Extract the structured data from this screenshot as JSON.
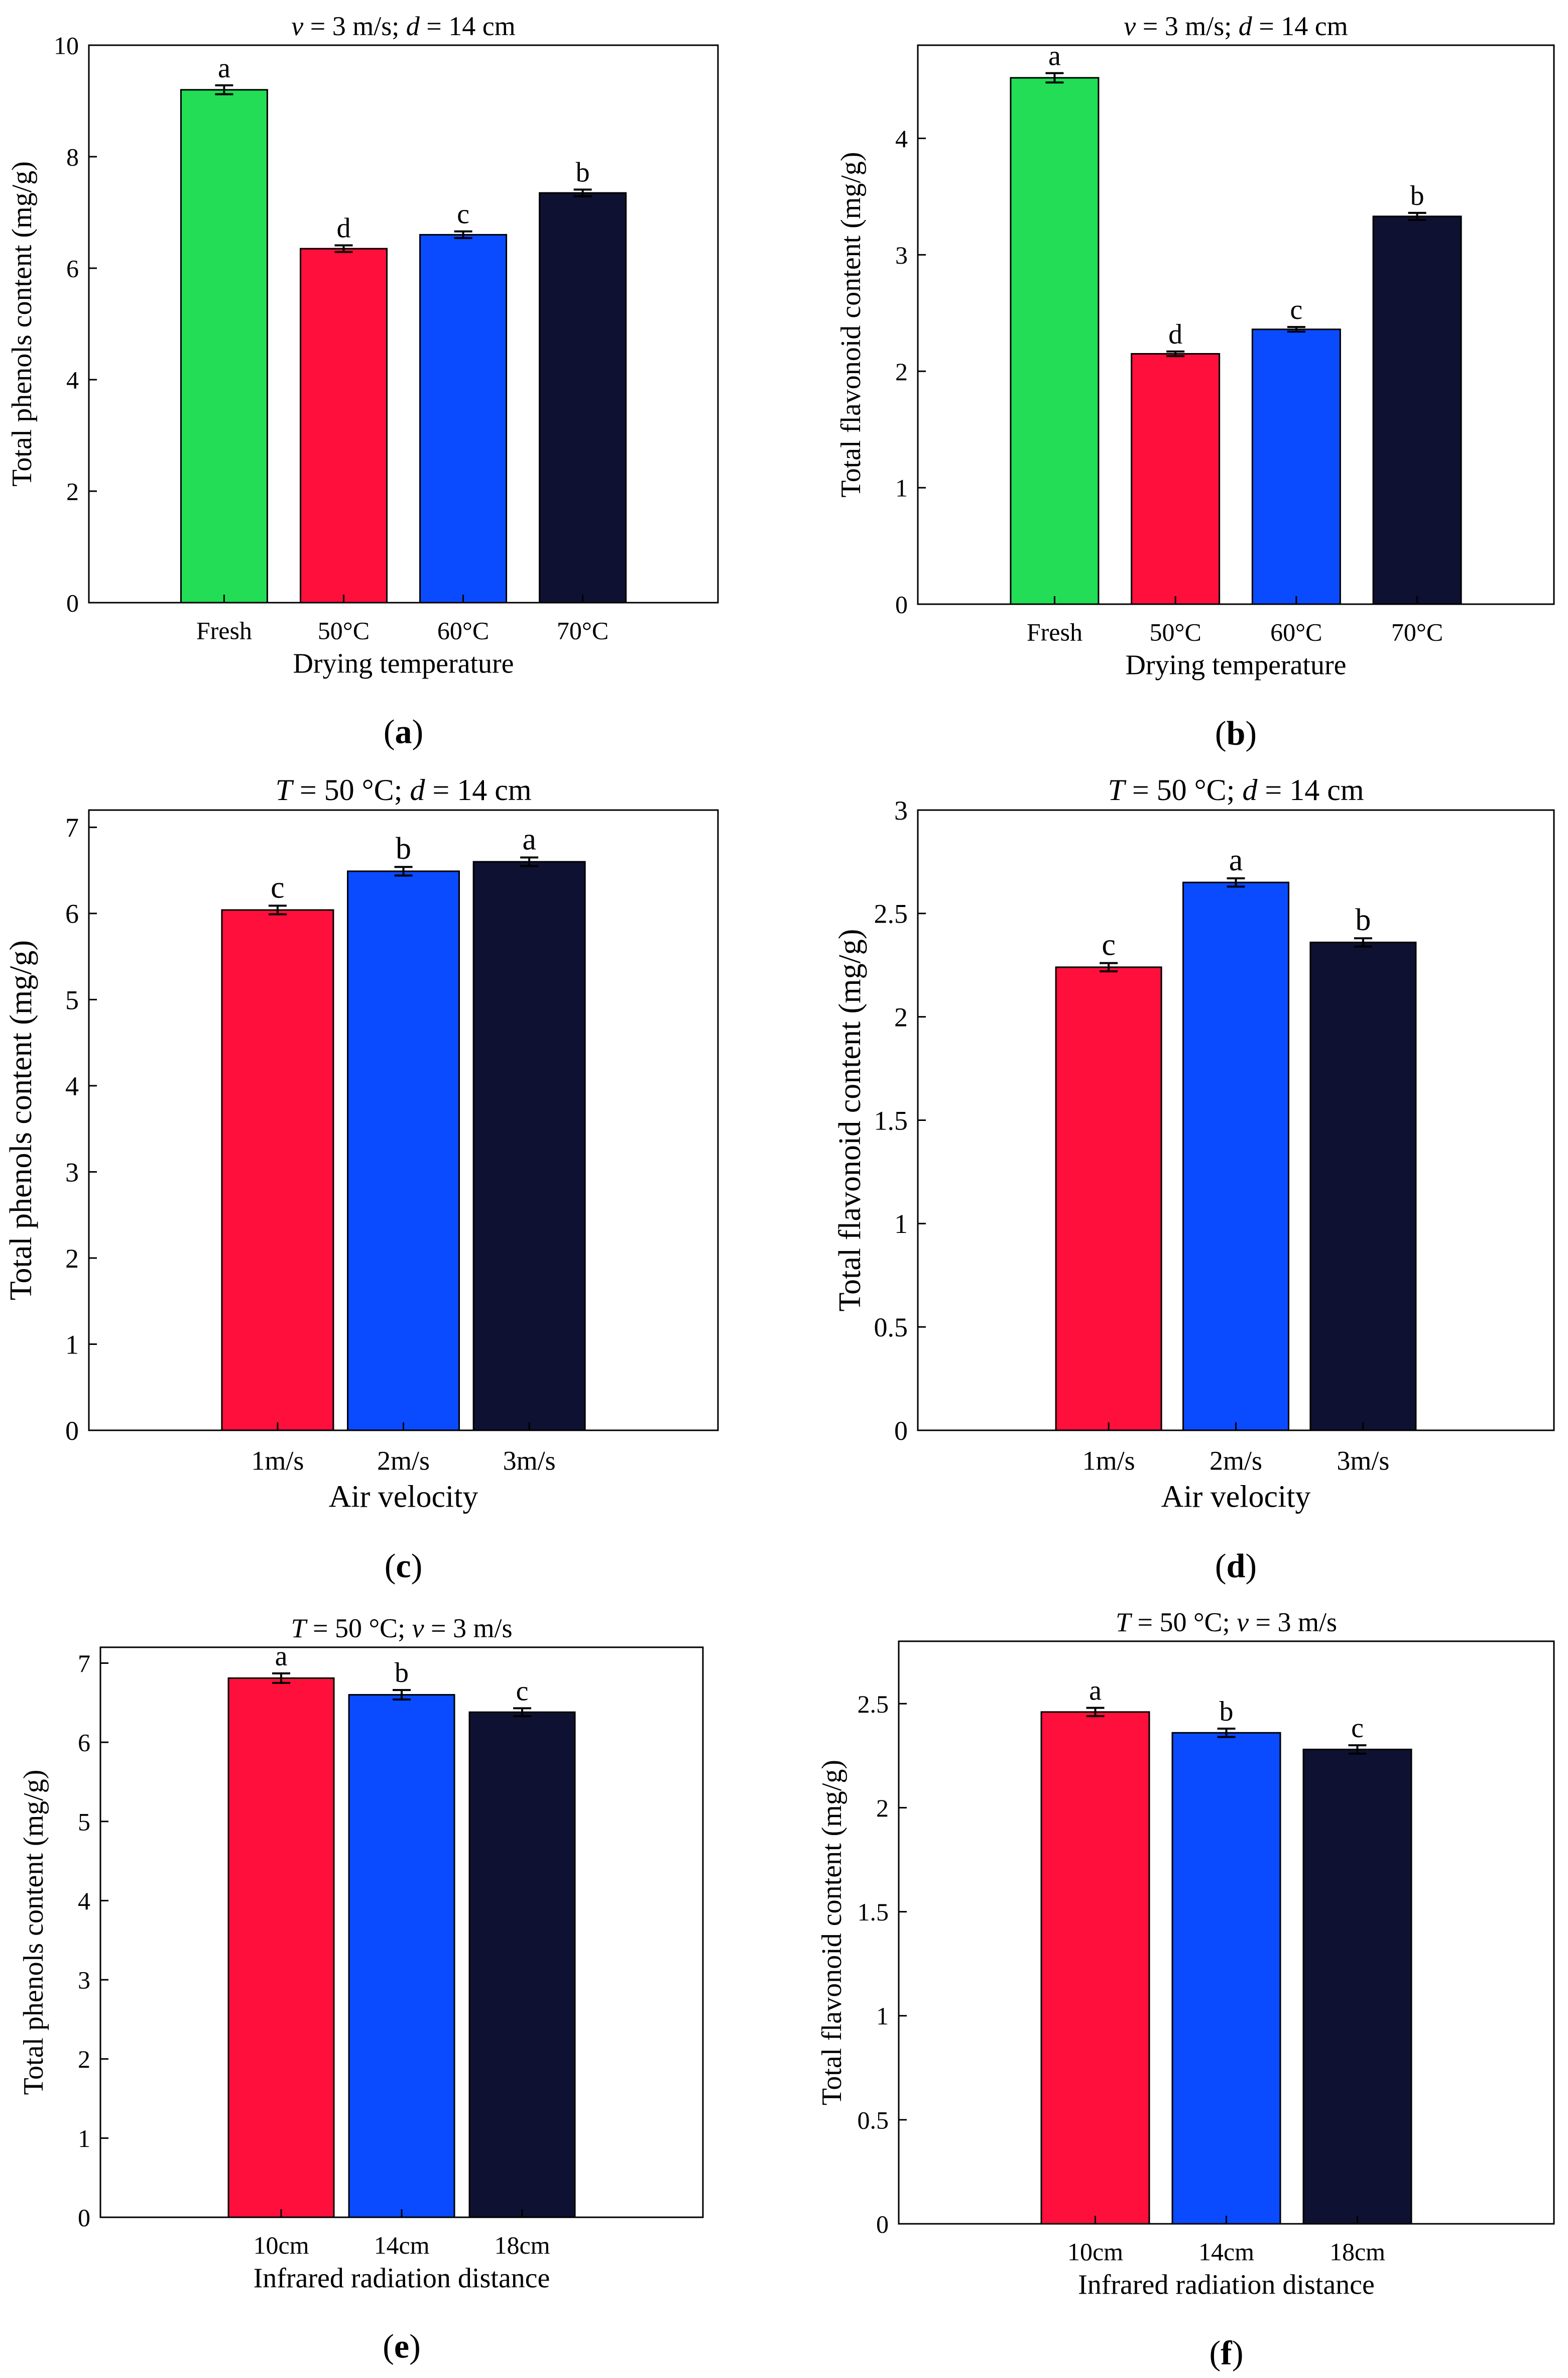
{
  "colors": {
    "fresh": "#22dd55",
    "c50": "#ff0f3c",
    "c60": "#0a4bff",
    "c70": "#0f1132"
  },
  "chart_data": [
    {
      "panel": "(a)",
      "type": "bar",
      "title_pre": "v",
      "title_mid1": " = 3 m/s; ",
      "title_var2": "d",
      "title_mid2": " = 14 cm",
      "xlabel": "Drying temperature",
      "ylabel": "Total phenols content (mg/g)",
      "ylim": [
        0,
        10
      ],
      "yticks": [
        0,
        2,
        4,
        6,
        8,
        10
      ],
      "ytick_labels": [
        "0",
        "2",
        "4",
        "6",
        "8",
        "10"
      ],
      "categories": [
        "Fresh",
        "50°C",
        "60°C",
        "70°C"
      ],
      "values": [
        9.2,
        6.35,
        6.6,
        7.35
      ],
      "errors": [
        0.08,
        0.06,
        0.06,
        0.06
      ],
      "letters": [
        "a",
        "d",
        "c",
        "b"
      ],
      "bar_colors": [
        "#22dd55",
        "#ff0f3c",
        "#0a4bff",
        "#0f1132"
      ]
    },
    {
      "panel": "(b)",
      "type": "bar",
      "title_pre": "v",
      "title_mid1": " = 3 m/s; ",
      "title_var2": "d",
      "title_mid2": " = 14 cm",
      "xlabel": "Drying temperature",
      "ylabel": "Total flavonoid content (mg/g)",
      "ylim": [
        0,
        4.8
      ],
      "yticks": [
        0,
        1,
        2,
        3,
        4
      ],
      "ytick_labels": [
        "0",
        "1",
        "2",
        "3",
        "4"
      ],
      "categories": [
        "Fresh",
        "50°C",
        "60°C",
        "70°C"
      ],
      "values": [
        4.52,
        2.15,
        2.36,
        3.33
      ],
      "errors": [
        0.04,
        0.02,
        0.02,
        0.03
      ],
      "letters": [
        "a",
        "d",
        "c",
        "b"
      ],
      "bar_colors": [
        "#22dd55",
        "#ff0f3c",
        "#0a4bff",
        "#0f1132"
      ]
    },
    {
      "panel": "(c)",
      "type": "bar",
      "title_pre": "T",
      "title_mid1": " = 50 °C; ",
      "title_var2": "d",
      "title_mid2": " = 14 cm",
      "xlabel": "Air velocity",
      "ylabel": "Total phenols content (mg/g)",
      "ylim": [
        0,
        7.2
      ],
      "yticks": [
        0,
        1,
        2,
        3,
        4,
        5,
        6,
        7
      ],
      "ytick_labels": [
        "0",
        "1",
        "2",
        "3",
        "4",
        "5",
        "6",
        "7"
      ],
      "categories": [
        "1m/s",
        "2m/s",
        "3m/s"
      ],
      "values": [
        6.04,
        6.49,
        6.6
      ],
      "errors": [
        0.05,
        0.05,
        0.05
      ],
      "letters": [
        "c",
        "b",
        "a"
      ],
      "bar_colors": [
        "#ff0f3c",
        "#0a4bff",
        "#0f1132"
      ]
    },
    {
      "panel": "(d)",
      "type": "bar",
      "title_pre": "T",
      "title_mid1": " = 50 °C; ",
      "title_var2": "d",
      "title_mid2": " = 14 cm",
      "xlabel": "Air velocity",
      "ylabel": "Total flavonoid content (mg/g)",
      "ylim": [
        0,
        3
      ],
      "yticks": [
        0,
        0.5,
        1,
        1.5,
        2,
        2.5,
        3
      ],
      "ytick_labels": [
        "0",
        "0.5",
        "1",
        "1.5",
        "2",
        "2.5",
        "3"
      ],
      "categories": [
        "1m/s",
        "2m/s",
        "3m/s"
      ],
      "values": [
        2.24,
        2.65,
        2.36
      ],
      "errors": [
        0.02,
        0.02,
        0.02
      ],
      "letters": [
        "c",
        "a",
        "b"
      ],
      "bar_colors": [
        "#ff0f3c",
        "#0a4bff",
        "#0f1132"
      ]
    },
    {
      "panel": "(e)",
      "type": "bar",
      "title_pre": "T",
      "title_mid1": " = 50 °C; ",
      "title_var2": "v",
      "title_mid2": " = 3 m/s",
      "xlabel": "Infrared radiation distance",
      "ylabel": "Total phenols content (mg/g)",
      "ylim": [
        0,
        7.2
      ],
      "yticks": [
        0,
        1,
        2,
        3,
        4,
        5,
        6,
        7
      ],
      "ytick_labels": [
        "0",
        "1",
        "2",
        "3",
        "4",
        "5",
        "6",
        "7"
      ],
      "categories": [
        "10cm",
        "14cm",
        "18cm"
      ],
      "values": [
        6.81,
        6.6,
        6.38
      ],
      "errors": [
        0.06,
        0.06,
        0.05
      ],
      "letters": [
        "a",
        "b",
        "c"
      ],
      "bar_colors": [
        "#ff0f3c",
        "#0a4bff",
        "#0f1132"
      ]
    },
    {
      "panel": "(f)",
      "type": "bar",
      "title_pre": "T",
      "title_mid1": " = 50 °C; ",
      "title_var2": "v",
      "title_mid2": " = 3 m/s",
      "xlabel": "Infrared radiation distance",
      "ylabel": "Total flavonoid content (mg/g)",
      "ylim": [
        0,
        2.8
      ],
      "yticks": [
        0,
        0.5,
        1,
        1.5,
        2,
        2.5
      ],
      "ytick_labels": [
        "0",
        "0.5",
        "1",
        "1.5",
        "2",
        "2.5"
      ],
      "categories": [
        "10cm",
        "14cm",
        "18cm"
      ],
      "values": [
        2.46,
        2.36,
        2.28
      ],
      "errors": [
        0.02,
        0.02,
        0.02
      ],
      "letters": [
        "a",
        "b",
        "c"
      ],
      "bar_colors": [
        "#ff0f3c",
        "#0a4bff",
        "#0f1132"
      ]
    }
  ]
}
